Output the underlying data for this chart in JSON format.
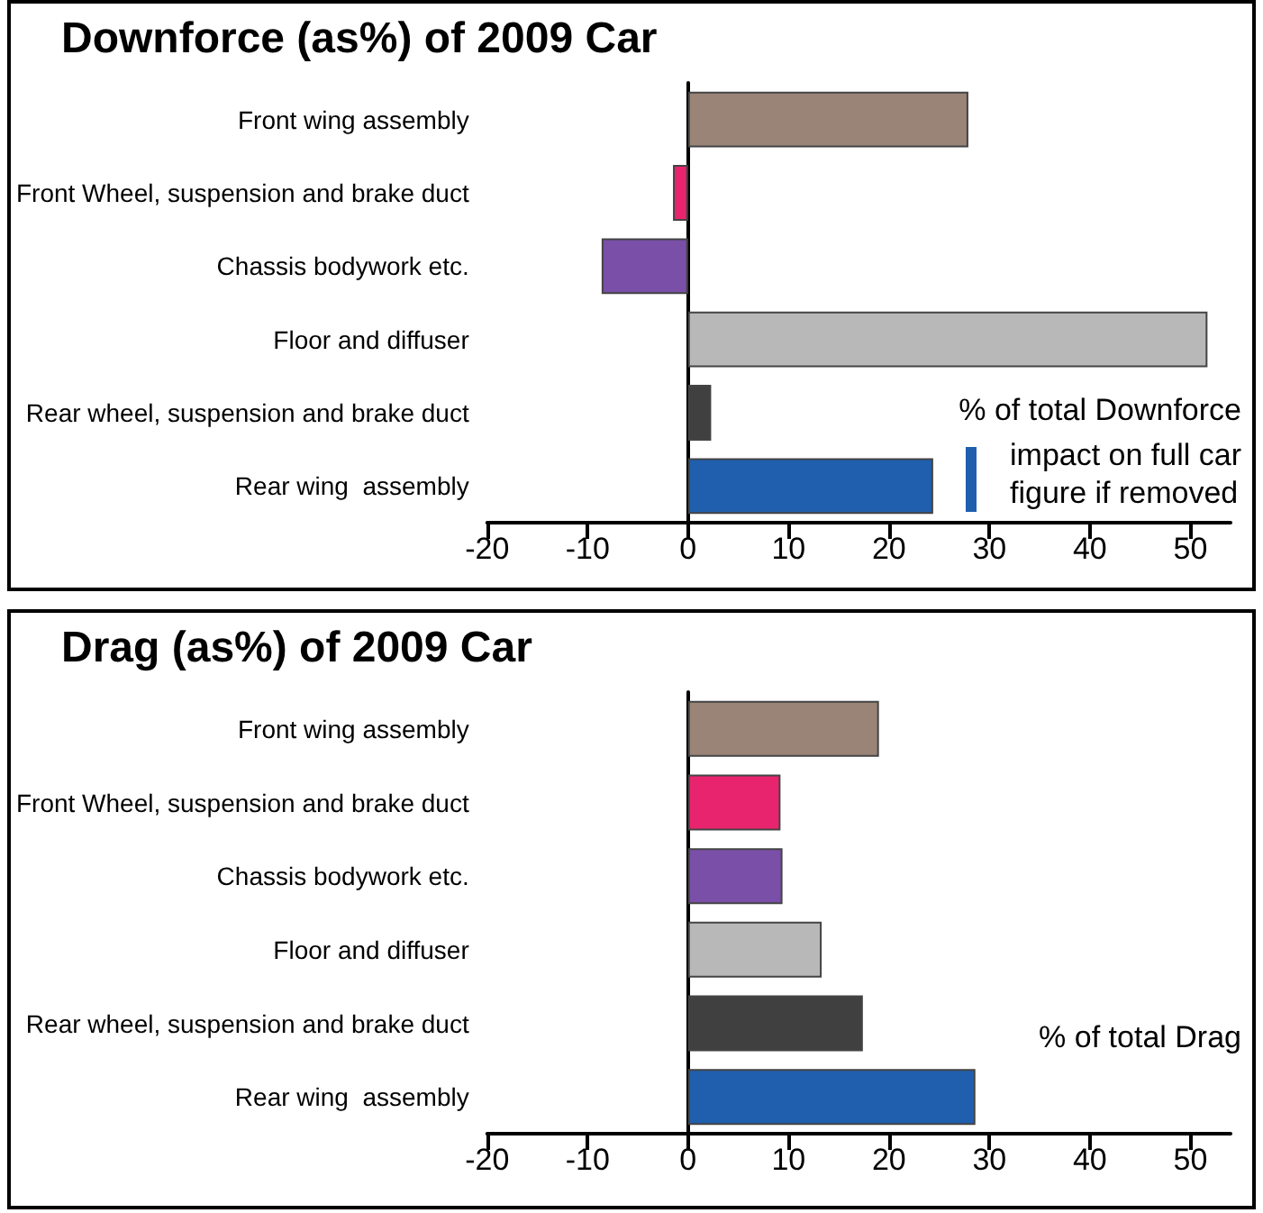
{
  "chart_data": [
    {
      "type": "bar",
      "orientation": "horizontal",
      "title": "Downforce (as%) of 2009 Car",
      "categories": [
        "Front wing assembly",
        "Front Wheel, suspension and brake duct",
        "Chassis bodywork etc.",
        "Floor and diffuser",
        "Rear wheel, suspension and brake duct",
        "Rear wing  assembly"
      ],
      "values": [
        27.9,
        -1.5,
        -8.6,
        51.7,
        2.3,
        24.4
      ],
      "colors": [
        "#9a8478",
        "#e8246e",
        "#7a4fa8",
        "#b8b8b8",
        "#404040",
        "#1f5fae"
      ],
      "xlim": [
        -20,
        54
      ],
      "xticks": [
        -20,
        -10,
        0,
        10,
        20,
        30,
        40,
        50
      ],
      "annotations": [
        "% of total Downforce",
        "impact on full car\nfigure if removed"
      ]
    },
    {
      "type": "bar",
      "orientation": "horizontal",
      "title": "Drag (as%) of 2009 Car",
      "categories": [
        "Front wing assembly",
        "Front Wheel, suspension and brake duct",
        "Chassis bodywork etc.",
        "Floor and diffuser",
        "Rear wheel, suspension and brake duct",
        "Rear wing  assembly"
      ],
      "values": [
        19.0,
        9.2,
        9.4,
        13.3,
        17.4,
        28.6
      ],
      "colors": [
        "#9a8478",
        "#e8246e",
        "#7a4fa8",
        "#b8b8b8",
        "#404040",
        "#1f5fae"
      ],
      "xlim": [
        -20,
        54
      ],
      "xticks": [
        -20,
        -10,
        0,
        10,
        20,
        30,
        40,
        50
      ],
      "annotations": [
        "% of total Drag"
      ]
    }
  ]
}
